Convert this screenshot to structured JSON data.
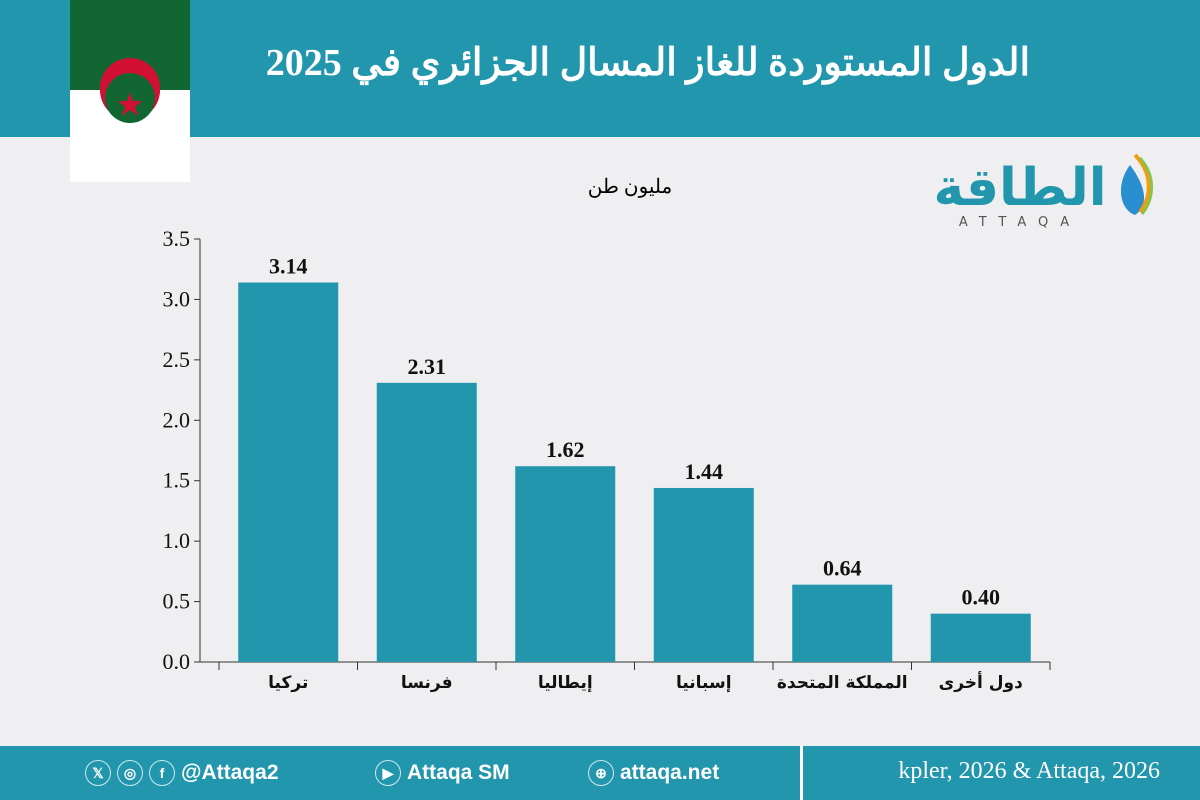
{
  "header": {
    "title": "الدول المستوردة للغاز المسال الجزائري في 2025"
  },
  "logo": {
    "text": "الطاقة",
    "latin": "ATTAQA"
  },
  "colors": {
    "bar": "#2196ad",
    "header": "#2196ad",
    "flag_green": "#116632",
    "flag_red": "#d21034"
  },
  "chart_data": {
    "type": "bar",
    "title": "الدول المستوردة للغاز المسال الجزائري في 2025",
    "ylabel": "مليون طن",
    "categories": [
      "تركيا",
      "فرنسا",
      "إيطاليا",
      "إسبانيا",
      "المملكة المتحدة",
      "دول أخرى"
    ],
    "values": [
      3.14,
      2.31,
      1.62,
      1.44,
      0.64,
      0.4
    ],
    "data_labels": [
      "3.14",
      "2.31",
      "1.62",
      "1.44",
      "0.64",
      "0.40"
    ],
    "yticks": [
      "0.0",
      "0.5",
      "1.0",
      "1.5",
      "2.0",
      "2.5",
      "3.0",
      "3.5"
    ],
    "ylim": [
      0,
      3.5
    ],
    "grid": false
  },
  "footer": {
    "social_handle": "@Attaqa2",
    "youtube": "Attaqa SM",
    "website": "attaqa.net",
    "source": "kpler, 2026 & Attaqa, 2026",
    "icons": [
      "x-icon",
      "instagram-icon",
      "facebook-icon",
      "youtube-icon",
      "globe-icon"
    ]
  }
}
